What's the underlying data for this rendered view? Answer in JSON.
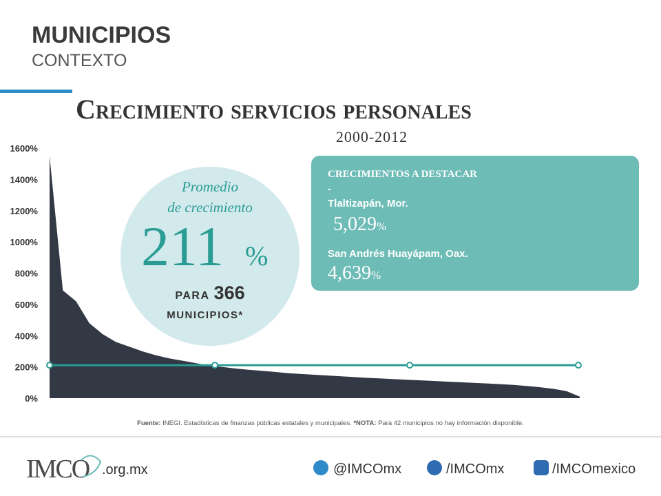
{
  "header": {
    "title": "MUNICIPIOS",
    "subtitle": "CONTEXTO"
  },
  "chart_data": {
    "type": "area",
    "title": "Crecimiento servicios personales",
    "subtitle": "2000-2012",
    "values": [
      1550,
      690,
      620,
      480,
      410,
      360,
      330,
      300,
      275,
      255,
      240,
      225,
      210,
      200,
      190,
      182,
      175,
      168,
      160,
      155,
      150,
      145,
      140,
      135,
      130,
      126,
      122,
      118,
      114,
      110,
      106,
      102,
      98,
      94,
      90,
      85,
      78,
      70,
      60,
      45,
      10
    ],
    "color": "#333845",
    "ylim": [
      0,
      1600
    ],
    "yticks": [
      {
        "value": 0,
        "label": "0%"
      },
      {
        "value": 200,
        "label": "200%"
      },
      {
        "value": 400,
        "label": "400%"
      },
      {
        "value": 600,
        "label": "600%"
      },
      {
        "value": 800,
        "label": "800%"
      },
      {
        "value": 1000,
        "label": "1000%"
      },
      {
        "value": 1200,
        "label": "1200%"
      },
      {
        "value": 1400,
        "label": "1400%"
      },
      {
        "value": 1600,
        "label": "1600%"
      }
    ],
    "average": 211,
    "average_color": "#2a9c93",
    "average_label": [
      "Promedio",
      "de crecimiento"
    ],
    "average_unit": "%",
    "count_prefix": "PARA",
    "count": 366,
    "count_suffix": "MUNICIPIOS*",
    "highlights_title": "CRECIMIENTOS A DESTACAR",
    "highlights_separator": "-",
    "highlights": [
      {
        "name": "Tlaltizapán, Mor.",
        "value": 5029,
        "value_label": "5,029",
        "unit": "%"
      },
      {
        "name": "San Andrés Huayápam, Oax.",
        "value": 4639,
        "value_label": "4,639",
        "unit": "%"
      }
    ],
    "source_label": "Fuente:",
    "source": "INEGI.  Estadísticas de finanzas públicas estatales y municipales.",
    "note_label": "*NOTA:",
    "note": "Para 42 municipios no hay información disponible."
  },
  "footer": {
    "logo": "IMCO",
    "domain": ".org.mx",
    "twitter": "@IMCOmx",
    "facebook": "/IMCOmx",
    "youtube": "/IMCOmexico"
  }
}
